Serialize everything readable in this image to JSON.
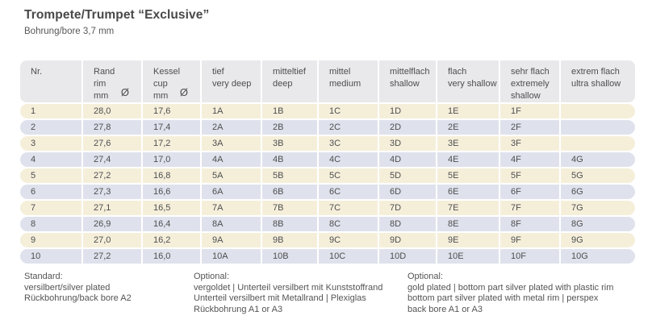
{
  "page": {
    "title": "Trompete/Trumpet “Exclusive”",
    "subtitle": "Bohrung/bore 3,7 mm"
  },
  "colors": {
    "header_bg": "#e9e9ec",
    "row_odd_bg": "#f5efda",
    "row_even_bg": "#dfe2ec",
    "separator": "#ffffff",
    "text": "#4d4d4f"
  },
  "table": {
    "columns": [
      {
        "lines": [
          "Nr."
        ],
        "symbol": ""
      },
      {
        "lines": [
          "Rand",
          "rim",
          "mm"
        ],
        "symbol": "Ø"
      },
      {
        "lines": [
          "Kessel",
          "cup",
          "mm"
        ],
        "symbol": "Ø"
      },
      {
        "lines": [
          "tief",
          "very deep"
        ],
        "symbol": ""
      },
      {
        "lines": [
          "mitteltief",
          "deep"
        ],
        "symbol": ""
      },
      {
        "lines": [
          "mittel",
          "medium"
        ],
        "symbol": ""
      },
      {
        "lines": [
          "mittelflach",
          "shallow"
        ],
        "symbol": ""
      },
      {
        "lines": [
          "flach",
          "very shallow"
        ],
        "symbol": ""
      },
      {
        "lines": [
          "sehr flach",
          "extremely",
          "shallow"
        ],
        "symbol": ""
      },
      {
        "lines": [
          "extrem flach",
          "ultra shallow"
        ],
        "symbol": ""
      }
    ],
    "rows": [
      [
        "1",
        "28,0",
        "17,6",
        "1A",
        "1B",
        "1C",
        "1D",
        "1E",
        "1F",
        ""
      ],
      [
        "2",
        "27,8",
        "17,4",
        "2A",
        "2B",
        "2C",
        "2D",
        "2E",
        "2F",
        ""
      ],
      [
        "3",
        "27,6",
        "17,2",
        "3A",
        "3B",
        "3C",
        "3D",
        "3E",
        "3F",
        ""
      ],
      [
        "4",
        "27,4",
        "17,0",
        "4A",
        "4B",
        "4C",
        "4D",
        "4E",
        "4F",
        "4G"
      ],
      [
        "5",
        "27,2",
        "16,8",
        "5A",
        "5B",
        "5C",
        "5D",
        "5E",
        "5F",
        "5G"
      ],
      [
        "6",
        "27,3",
        "16,6",
        "6A",
        "6B",
        "6C",
        "6D",
        "6E",
        "6F",
        "6G"
      ],
      [
        "7",
        "27,1",
        "16,5",
        "7A",
        "7B",
        "7C",
        "7D",
        "7E",
        "7F",
        "7G"
      ],
      [
        "8",
        "26,9",
        "16,4",
        "8A",
        "8B",
        "8C",
        "8D",
        "8E",
        "8F",
        "8G"
      ],
      [
        "9",
        "27,0",
        "16,2",
        "9A",
        "9B",
        "9C",
        "9D",
        "9E",
        "9F",
        "9G"
      ],
      [
        "10",
        "27,2",
        "16,0",
        "10A",
        "10B",
        "10C",
        "10D",
        "10E",
        "10F",
        "10G"
      ]
    ]
  },
  "footnotes": [
    {
      "heading": "Standard:",
      "lines": [
        "versilbert/silver plated",
        "Rückbohrung/back bore A2"
      ]
    },
    {
      "heading": "Optional:",
      "lines": [
        "vergoldet | Unterteil versilbert mit Kunststoffrand",
        "Unterteil versilbert mit Metallrand | Plexiglas",
        "Rückbohrung A1 or A3"
      ]
    },
    {
      "heading": "Optional:",
      "lines": [
        "gold plated | bottom part silver plated with plastic rim",
        "bottom part silver plated with metal rim | perspex",
        "back bore A1 or A3"
      ]
    }
  ]
}
